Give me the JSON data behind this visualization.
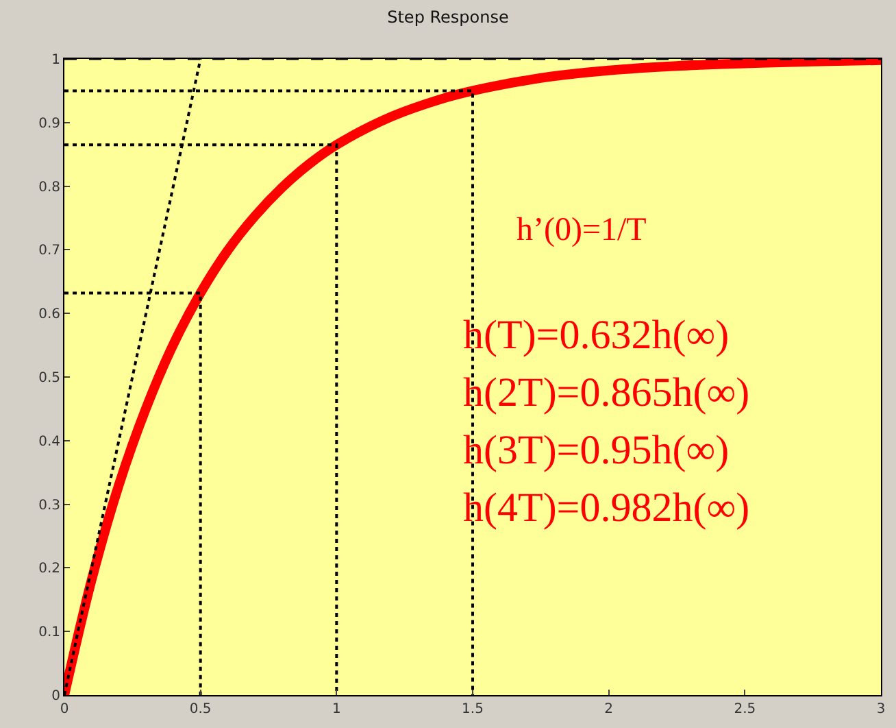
{
  "chart_data": {
    "type": "line",
    "title": "Step Response",
    "xlim": [
      0,
      3
    ],
    "xticks": [
      0,
      0.5,
      1,
      1.5,
      2,
      2.5,
      3
    ],
    "ylim": [
      0,
      1
    ],
    "yticks": [
      0,
      0.1,
      0.2,
      0.3,
      0.4,
      0.5,
      0.6,
      0.7,
      0.8,
      0.9,
      1
    ],
    "grid": false,
    "marker": "none",
    "series": [
      {
        "color": "#ff0000",
        "line_style": "solid",
        "x": [
          0,
          0.1,
          0.2,
          0.3,
          0.4,
          0.5,
          0.6,
          0.7,
          0.8,
          0.9,
          1.0,
          1.2,
          1.4,
          1.5,
          1.6,
          1.8,
          2.0,
          2.25,
          2.5,
          2.75,
          3.0
        ],
        "values": [
          0,
          0.181,
          0.33,
          0.451,
          0.551,
          0.632,
          0.699,
          0.753,
          0.798,
          0.835,
          0.865,
          0.909,
          0.939,
          0.95,
          0.959,
          0.973,
          0.982,
          0.989,
          0.993,
          0.996,
          0.998
        ]
      },
      {
        "color": "#000000",
        "line_style": "dotted",
        "x": [
          0,
          0.5
        ],
        "values": [
          0,
          1
        ]
      },
      {
        "color": "#000000",
        "line_style": "dotted",
        "x": [
          0,
          0.5,
          0.5
        ],
        "values": [
          0.632,
          0.632,
          0
        ]
      },
      {
        "color": "#000000",
        "line_style": "dotted",
        "x": [
          0,
          1,
          1
        ],
        "values": [
          0.865,
          0.865,
          0
        ]
      },
      {
        "color": "#000000",
        "line_style": "dotted",
        "x": [
          0,
          1.5,
          1.5
        ],
        "values": [
          0.95,
          0.95,
          0
        ]
      }
    ],
    "ref_lines": [
      {
        "axis": "y",
        "value": 1,
        "label": null,
        "color": "#000000",
        "line_style": "dashed"
      }
    ],
    "annotations": [
      "h’(0)=1/T",
      "h(T)=0.632h(∞)",
      "h(2T)=0.865h(∞)",
      "h(3T)=0.95h(∞)",
      "h(4T)=0.982h(∞)"
    ]
  }
}
